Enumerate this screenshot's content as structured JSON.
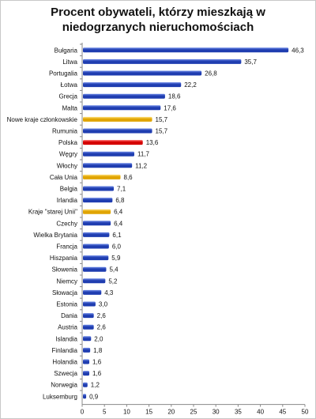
{
  "chart_data": {
    "type": "bar",
    "orientation": "horizontal",
    "title_lines": [
      "Procent obywateli, którzy mieszkają w",
      "niedogrzanych nieruchomościach"
    ],
    "categories": [
      "Bułgaria",
      "Litwa",
      "Portugalia",
      "Łotwa",
      "Grecja",
      "Malta",
      "Nowe kraje członkowskie",
      "Rumunia",
      "Polska",
      "Węgry",
      "Włochy",
      "Cała Unia",
      "Belgia",
      "Irlandia",
      "Kraje \"starej Unii\"",
      "Czechy",
      "Wielka Brytania",
      "Francja",
      "Hiszpania",
      "Słowenia",
      "Niemcy",
      "Słowacja",
      "Estonia",
      "Dania",
      "Austria",
      "Islandia",
      "Finlandia",
      "Holandia",
      "Szwecja",
      "Norwegia",
      "Luksemburg"
    ],
    "values": [
      46.3,
      35.7,
      26.8,
      22.2,
      18.6,
      17.6,
      15.7,
      15.7,
      13.6,
      11.7,
      11.2,
      8.6,
      7.1,
      6.8,
      6.4,
      6.4,
      6.1,
      6.0,
      5.9,
      5.4,
      5.2,
      4.3,
      3.0,
      2.6,
      2.6,
      2.0,
      1.8,
      1.6,
      1.6,
      1.2,
      0.9
    ],
    "value_labels": [
      "46,3",
      "35,7",
      "26,8",
      "22,2",
      "18,6",
      "17,6",
      "15,7",
      "15,7",
      "13,6",
      "11,7",
      "11,2",
      "8,6",
      "7,1",
      "6,8",
      "6,4",
      "6,4",
      "6,1",
      "6,0",
      "5,9",
      "5,4",
      "5,2",
      "4,3",
      "3,0",
      "2,6",
      "2,6",
      "2,0",
      "1,8",
      "1,6",
      "1,6",
      "1,2",
      "0,9"
    ],
    "highlight": [
      "blue",
      "blue",
      "blue",
      "blue",
      "blue",
      "blue",
      "gold",
      "blue",
      "red",
      "blue",
      "blue",
      "gold",
      "blue",
      "blue",
      "gold",
      "blue",
      "blue",
      "blue",
      "blue",
      "blue",
      "blue",
      "blue",
      "blue",
      "blue",
      "blue",
      "blue",
      "blue",
      "blue",
      "blue",
      "blue",
      "blue"
    ],
    "xlim": [
      0,
      50
    ],
    "xticks": [
      0,
      5,
      10,
      15,
      20,
      25,
      30,
      35,
      40,
      45,
      50
    ],
    "grid": false,
    "legend": "none",
    "colors": {
      "blue": "#1f3db0",
      "blue_light": "#6f8be8",
      "gold": "#e0a400",
      "gold_light": "#ffe07a",
      "red": "#d40000",
      "red_light": "#ff6a6a"
    }
  }
}
